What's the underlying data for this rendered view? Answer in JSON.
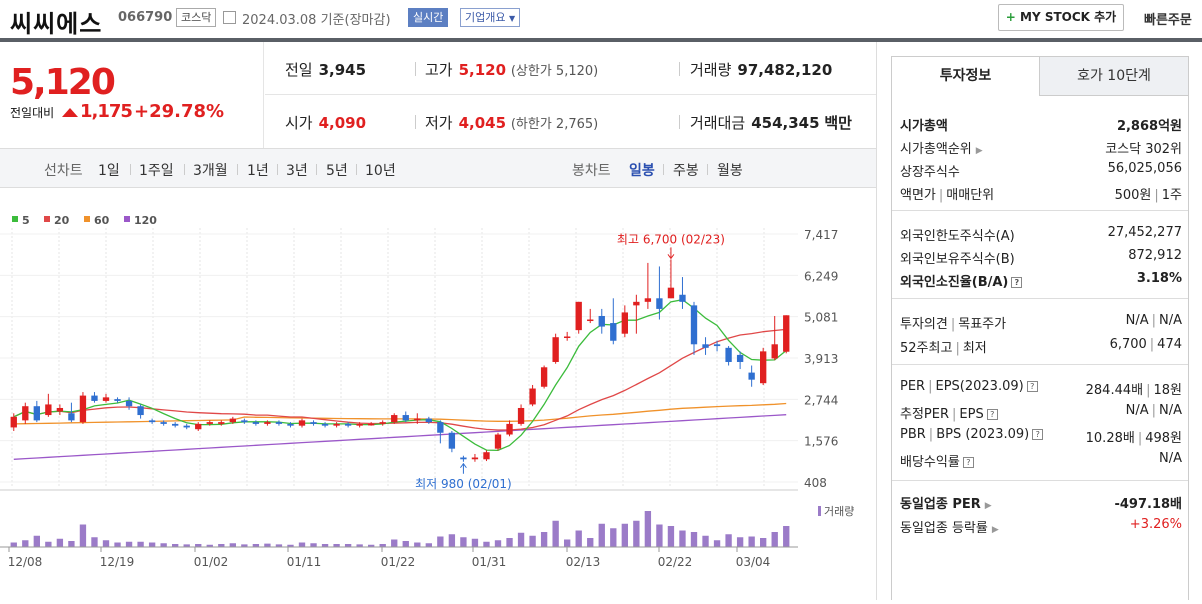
{
  "header": {
    "name": "씨씨에스",
    "code": "066790",
    "market": "코스닥",
    "date": "2024.03.08",
    "basis": "기준(장마감)",
    "realtime_label": "실시간",
    "company_label": "기업개요",
    "mystock_label": "MY STOCK 추가",
    "quick_order_label": "빠른주문"
  },
  "price": {
    "current": "5,120",
    "change_label": "전일대비",
    "change": "1,175",
    "change_pct": "+29.78%"
  },
  "stats": {
    "prev_label": "전일",
    "prev": "3,945",
    "high_label": "고가",
    "high": "5,120",
    "upper_limit": "(상한가 5,120)",
    "volume_label": "거래량",
    "volume": "97,482,120",
    "open_label": "시가",
    "open": "4,090",
    "low_label": "저가",
    "low": "4,045",
    "lower_limit": "(하한가 2,765)",
    "amount_label": "거래대금",
    "amount": "454,345",
    "amount_unit": "백만"
  },
  "periods": {
    "line_label": "선차트",
    "line_items": [
      "1일",
      "1주일",
      "3개월",
      "1년",
      "3년",
      "5년",
      "10년"
    ],
    "candle_label": "봉차트",
    "candle_items": [
      "일봉",
      "주봉",
      "월봉"
    ],
    "candle_active": 0
  },
  "colors": {
    "up": "#e02020",
    "down": "#2f6fd0",
    "ma5": "#3cbc3c",
    "ma20": "#e04848",
    "ma60": "#f0922b",
    "ma120": "#9b58c9",
    "volume": "#9b7bc8"
  },
  "chart_data": {
    "type": "candlestick",
    "legend": [
      "5",
      "20",
      "60",
      "120"
    ],
    "y_ticks": [
      "7,417",
      "6,249",
      "5,081",
      "3,913",
      "2,744",
      "1,576",
      "408"
    ],
    "y_range": [
      408,
      7417
    ],
    "x_labels": [
      "12/08",
      "12/19",
      "01/02",
      "01/11",
      "01/22",
      "01/31",
      "02/13",
      "02/22",
      "03/04"
    ],
    "volume_label": "거래량",
    "high_annotation": "최고 6,700 (02/23)",
    "low_annotation": "최저 980 (02/01)",
    "candles": [
      {
        "o": 1950,
        "c": 2250,
        "h": 2350,
        "l": 1850,
        "v": 12
      },
      {
        "o": 2150,
        "c": 2550,
        "h": 2650,
        "l": 2050,
        "v": 18
      },
      {
        "o": 2550,
        "c": 2150,
        "h": 2700,
        "l": 2100,
        "v": 30
      },
      {
        "o": 2300,
        "c": 2600,
        "h": 2900,
        "l": 2250,
        "v": 14
      },
      {
        "o": 2400,
        "c": 2500,
        "h": 2600,
        "l": 2300,
        "v": 22
      },
      {
        "o": 2350,
        "c": 2150,
        "h": 2650,
        "l": 2100,
        "v": 16
      },
      {
        "o": 2100,
        "c": 2850,
        "h": 2950,
        "l": 2050,
        "v": 60
      },
      {
        "o": 2850,
        "c": 2700,
        "h": 2950,
        "l": 2650,
        "v": 26
      },
      {
        "o": 2700,
        "c": 2800,
        "h": 2900,
        "l": 2650,
        "v": 18
      },
      {
        "o": 2750,
        "c": 2700,
        "h": 2800,
        "l": 2650,
        "v": 12
      },
      {
        "o": 2700,
        "c": 2550,
        "h": 2800,
        "l": 2450,
        "v": 14
      },
      {
        "o": 2550,
        "c": 2300,
        "h": 2600,
        "l": 2200,
        "v": 14
      },
      {
        "o": 2150,
        "c": 2100,
        "h": 2200,
        "l": 2050,
        "v": 12
      },
      {
        "o": 2100,
        "c": 2050,
        "h": 2150,
        "l": 2000,
        "v": 10
      },
      {
        "o": 2050,
        "c": 2000,
        "h": 2100,
        "l": 1950,
        "v": 8
      },
      {
        "o": 2000,
        "c": 1950,
        "h": 2050,
        "l": 1900,
        "v": 7
      },
      {
        "o": 1900,
        "c": 2050,
        "h": 2100,
        "l": 1850,
        "v": 8
      },
      {
        "o": 2050,
        "c": 2100,
        "h": 2150,
        "l": 2000,
        "v": 6
      },
      {
        "o": 2050,
        "c": 2100,
        "h": 2150,
        "l": 2000,
        "v": 8
      },
      {
        "o": 2100,
        "c": 2200,
        "h": 2250,
        "l": 2050,
        "v": 10
      },
      {
        "o": 2150,
        "c": 2100,
        "h": 2200,
        "l": 2050,
        "v": 7
      },
      {
        "o": 2100,
        "c": 2050,
        "h": 2150,
        "l": 2000,
        "v": 8
      },
      {
        "o": 2050,
        "c": 2100,
        "h": 2150,
        "l": 2000,
        "v": 9
      },
      {
        "o": 2100,
        "c": 2050,
        "h": 2150,
        "l": 2000,
        "v": 7
      },
      {
        "o": 2050,
        "c": 2000,
        "h": 2100,
        "l": 1950,
        "v": 6
      },
      {
        "o": 2000,
        "c": 2150,
        "h": 2200,
        "l": 1950,
        "v": 12
      },
      {
        "o": 2100,
        "c": 2050,
        "h": 2150,
        "l": 2000,
        "v": 10
      },
      {
        "o": 2050,
        "c": 2000,
        "h": 2100,
        "l": 1950,
        "v": 8
      },
      {
        "o": 2000,
        "c": 2050,
        "h": 2100,
        "l": 1950,
        "v": 8
      },
      {
        "o": 2050,
        "c": 2000,
        "h": 2100,
        "l": 1950,
        "v": 8
      },
      {
        "o": 2000,
        "c": 2050,
        "h": 2100,
        "l": 1950,
        "v": 7
      },
      {
        "o": 2050,
        "c": 2050,
        "h": 2100,
        "l": 2000,
        "v": 6
      },
      {
        "o": 2050,
        "c": 2100,
        "h": 2150,
        "l": 2000,
        "v": 8
      },
      {
        "o": 2100,
        "c": 2300,
        "h": 2350,
        "l": 2050,
        "v": 20
      },
      {
        "o": 2300,
        "c": 2150,
        "h": 2400,
        "l": 2100,
        "v": 16
      },
      {
        "o": 2150,
        "c": 2200,
        "h": 2350,
        "l": 2050,
        "v": 12
      },
      {
        "o": 2200,
        "c": 2100,
        "h": 2250,
        "l": 2050,
        "v": 10
      },
      {
        "o": 2100,
        "c": 1800,
        "h": 2150,
        "l": 1500,
        "v": 28
      },
      {
        "o": 1800,
        "c": 1350,
        "h": 1850,
        "l": 1250,
        "v": 34
      },
      {
        "o": 1100,
        "c": 1050,
        "h": 1150,
        "l": 980,
        "v": 26
      },
      {
        "o": 1050,
        "c": 1100,
        "h": 1200,
        "l": 980,
        "v": 22
      },
      {
        "o": 1050,
        "c": 1250,
        "h": 1300,
        "l": 1000,
        "v": 14
      },
      {
        "o": 1350,
        "c": 1750,
        "h": 1800,
        "l": 1300,
        "v": 18
      },
      {
        "o": 1750,
        "c": 2050,
        "h": 2150,
        "l": 1700,
        "v": 24
      },
      {
        "o": 2050,
        "c": 2500,
        "h": 2600,
        "l": 2000,
        "v": 38
      },
      {
        "o": 2600,
        "c": 3050,
        "h": 3150,
        "l": 2550,
        "v": 30
      },
      {
        "o": 3100,
        "c": 3650,
        "h": 3700,
        "l": 3050,
        "v": 40
      },
      {
        "o": 3800,
        "c": 4500,
        "h": 4600,
        "l": 3750,
        "v": 70
      },
      {
        "o": 4500,
        "c": 4520,
        "h": 4650,
        "l": 4400,
        "v": 20
      },
      {
        "o": 4700,
        "c": 5500,
        "h": 5500,
        "l": 4600,
        "v": 44
      },
      {
        "o": 5000,
        "c": 5000,
        "h": 5300,
        "l": 4900,
        "v": 24
      },
      {
        "o": 5100,
        "c": 4800,
        "h": 5300,
        "l": 4600,
        "v": 62
      },
      {
        "o": 4900,
        "c": 4400,
        "h": 5600,
        "l": 4300,
        "v": 50
      },
      {
        "o": 4600,
        "c": 5200,
        "h": 5400,
        "l": 4500,
        "v": 62
      },
      {
        "o": 5400,
        "c": 5500,
        "h": 5700,
        "l": 4600,
        "v": 70
      },
      {
        "o": 5500,
        "c": 5600,
        "h": 6600,
        "l": 5300,
        "v": 96
      },
      {
        "o": 5600,
        "c": 5300,
        "h": 6500,
        "l": 5000,
        "v": 60
      },
      {
        "o": 5600,
        "c": 5900,
        "h": 6700,
        "l": 5600,
        "v": 56
      },
      {
        "o": 5700,
        "c": 5500,
        "h": 6200,
        "l": 5300,
        "v": 44
      },
      {
        "o": 5400,
        "c": 4300,
        "h": 5500,
        "l": 4000,
        "v": 40
      },
      {
        "o": 4300,
        "c": 4200,
        "h": 4500,
        "l": 4000,
        "v": 30
      },
      {
        "o": 4300,
        "c": 4250,
        "h": 4400,
        "l": 4100,
        "v": 18
      },
      {
        "o": 4200,
        "c": 3800,
        "h": 4250,
        "l": 3700,
        "v": 34
      },
      {
        "o": 4000,
        "c": 3800,
        "h": 4100,
        "l": 3600,
        "v": 26
      },
      {
        "o": 3500,
        "c": 3300,
        "h": 3700,
        "l": 3100,
        "v": 28
      },
      {
        "o": 3200,
        "c": 4100,
        "h": 4200,
        "l": 3150,
        "v": 24
      },
      {
        "o": 3900,
        "c": 4300,
        "h": 5100,
        "l": 3850,
        "v": 40
      },
      {
        "o": 4090,
        "c": 5120,
        "h": 5120,
        "l": 4045,
        "v": 56
      }
    ]
  },
  "right_panel": {
    "tab_active": "투자정보",
    "tab_other": "호가 10단계",
    "market_cap_label": "시가총액",
    "market_cap": "2,868억원",
    "market_cap_rank_label": "시가총액순위",
    "market_cap_rank": "코스닥 302위",
    "shares_label": "상장주식수",
    "shares": "56,025,056",
    "par_label": "액면가",
    "unit_label": "매매단위",
    "par": "500원",
    "unit": "1주",
    "foreign_limit_label": "외국인한도주식수(A)",
    "foreign_limit": "27,452,277",
    "foreign_hold_label": "외국인보유주식수(B)",
    "foreign_hold": "872,912",
    "foreign_ratio_label": "외국인소진율(B/A)",
    "foreign_ratio": "3.18%",
    "opinion_label": "투자의견",
    "target_label": "목표주가",
    "opinion": "N/A",
    "target": "N/A",
    "w52_high_label": "52주최고",
    "w52_low_label": "최저",
    "w52_high": "6,700",
    "w52_low": "474",
    "per_label": "PER",
    "eps_label": "EPS(2023.09)",
    "per": "284.44배",
    "eps": "18원",
    "est_per_label": "추정PER",
    "est_eps_label": "EPS",
    "est_per": "N/A",
    "est_eps": "N/A",
    "pbr_label": "PBR",
    "bps_label": "BPS (2023.09)",
    "pbr": "10.28배",
    "bps": "498원",
    "div_label": "배당수익률",
    "div": "N/A",
    "ind_per_label": "동일업종 PER",
    "ind_per": "-497.18배",
    "ind_rate_label": "동일업종 등락률",
    "ind_rate": "+3.26%"
  }
}
